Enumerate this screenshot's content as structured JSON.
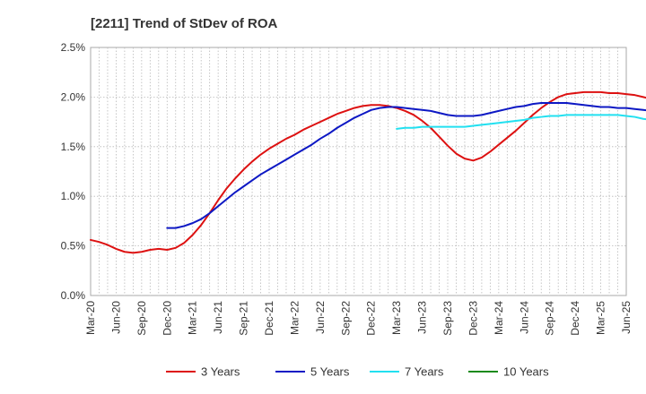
{
  "chart_data": {
    "type": "line",
    "title": "[2211]  Trend of StDev of ROA",
    "xlabel": "",
    "ylabel": "",
    "ylim": [
      0,
      2.5
    ],
    "y_ticks": [
      "0.0%",
      "0.5%",
      "1.0%",
      "1.5%",
      "2.0%",
      "2.5%"
    ],
    "x_ticks": [
      "Mar-20",
      "Jun-20",
      "Sep-20",
      "Dec-20",
      "Mar-21",
      "Jun-21",
      "Sep-21",
      "Dec-21",
      "Mar-22",
      "Jun-22",
      "Sep-22",
      "Dec-22",
      "Mar-23",
      "Jun-23",
      "Sep-23",
      "Dec-23",
      "Mar-24",
      "Jun-24",
      "Sep-24",
      "Dec-24",
      "Mar-25",
      "Jun-25"
    ],
    "grid": true,
    "legend_position": "bottom",
    "x_unit": "month index from Mar-20",
    "series": [
      {
        "name": "3 Years",
        "color": "#dd1111",
        "points": [
          [
            0,
            0.56
          ],
          [
            1,
            0.54
          ],
          [
            2,
            0.51
          ],
          [
            3,
            0.47
          ],
          [
            4,
            0.44
          ],
          [
            5,
            0.43
          ],
          [
            6,
            0.44
          ],
          [
            7,
            0.46
          ],
          [
            8,
            0.47
          ],
          [
            9,
            0.46
          ],
          [
            10,
            0.48
          ],
          [
            11,
            0.53
          ],
          [
            12,
            0.61
          ],
          [
            13,
            0.71
          ],
          [
            14,
            0.83
          ],
          [
            15,
            0.96
          ],
          [
            16,
            1.08
          ],
          [
            17,
            1.18
          ],
          [
            18,
            1.27
          ],
          [
            19,
            1.35
          ],
          [
            20,
            1.42
          ],
          [
            21,
            1.48
          ],
          [
            22,
            1.53
          ],
          [
            23,
            1.58
          ],
          [
            24,
            1.62
          ],
          [
            25,
            1.67
          ],
          [
            26,
            1.71
          ],
          [
            27,
            1.75
          ],
          [
            28,
            1.79
          ],
          [
            29,
            1.83
          ],
          [
            30,
            1.86
          ],
          [
            31,
            1.89
          ],
          [
            32,
            1.91
          ],
          [
            33,
            1.92
          ],
          [
            34,
            1.92
          ],
          [
            35,
            1.91
          ],
          [
            36,
            1.89
          ],
          [
            37,
            1.86
          ],
          [
            38,
            1.82
          ],
          [
            39,
            1.76
          ],
          [
            40,
            1.69
          ],
          [
            41,
            1.6
          ],
          [
            42,
            1.51
          ],
          [
            43,
            1.43
          ],
          [
            44,
            1.38
          ],
          [
            45,
            1.36
          ],
          [
            46,
            1.39
          ],
          [
            47,
            1.45
          ],
          [
            48,
            1.52
          ],
          [
            49,
            1.59
          ],
          [
            50,
            1.66
          ],
          [
            51,
            1.74
          ],
          [
            52,
            1.82
          ],
          [
            53,
            1.89
          ],
          [
            54,
            1.95
          ],
          [
            55,
            2.0
          ],
          [
            56,
            2.03
          ],
          [
            57,
            2.04
          ],
          [
            58,
            2.05
          ],
          [
            59,
            2.05
          ],
          [
            60,
            2.05
          ],
          [
            61,
            2.04
          ],
          [
            62,
            2.04
          ],
          [
            63,
            2.03
          ],
          [
            64,
            2.02
          ],
          [
            65,
            2.0
          ],
          [
            66,
            1.98
          ],
          [
            67,
            1.94
          ]
        ]
      },
      {
        "name": "5 Years",
        "color": "#0d18c4",
        "points": [
          [
            9,
            0.68
          ],
          [
            10,
            0.68
          ],
          [
            11,
            0.7
          ],
          [
            12,
            0.73
          ],
          [
            13,
            0.77
          ],
          [
            14,
            0.83
          ],
          [
            15,
            0.9
          ],
          [
            16,
            0.97
          ],
          [
            17,
            1.04
          ],
          [
            18,
            1.1
          ],
          [
            19,
            1.16
          ],
          [
            20,
            1.22
          ],
          [
            21,
            1.27
          ],
          [
            22,
            1.32
          ],
          [
            23,
            1.37
          ],
          [
            24,
            1.42
          ],
          [
            25,
            1.47
          ],
          [
            26,
            1.52
          ],
          [
            27,
            1.58
          ],
          [
            28,
            1.63
          ],
          [
            29,
            1.69
          ],
          [
            30,
            1.74
          ],
          [
            31,
            1.79
          ],
          [
            32,
            1.83
          ],
          [
            33,
            1.87
          ],
          [
            34,
            1.89
          ],
          [
            35,
            1.9
          ],
          [
            36,
            1.9
          ],
          [
            37,
            1.89
          ],
          [
            38,
            1.88
          ],
          [
            39,
            1.87
          ],
          [
            40,
            1.86
          ],
          [
            41,
            1.84
          ],
          [
            42,
            1.82
          ],
          [
            43,
            1.81
          ],
          [
            44,
            1.81
          ],
          [
            45,
            1.81
          ],
          [
            46,
            1.82
          ],
          [
            47,
            1.84
          ],
          [
            48,
            1.86
          ],
          [
            49,
            1.88
          ],
          [
            50,
            1.9
          ],
          [
            51,
            1.91
          ],
          [
            52,
            1.93
          ],
          [
            53,
            1.94
          ],
          [
            54,
            1.94
          ],
          [
            55,
            1.94
          ],
          [
            56,
            1.94
          ],
          [
            57,
            1.93
          ],
          [
            58,
            1.92
          ],
          [
            59,
            1.91
          ],
          [
            60,
            1.9
          ],
          [
            61,
            1.9
          ],
          [
            62,
            1.89
          ],
          [
            63,
            1.89
          ],
          [
            64,
            1.88
          ],
          [
            65,
            1.87
          ],
          [
            66,
            1.86
          ],
          [
            67,
            1.85
          ]
        ]
      },
      {
        "name": "7 Years",
        "color": "#22e0f0",
        "points": [
          [
            36,
            1.68
          ],
          [
            37,
            1.69
          ],
          [
            38,
            1.69
          ],
          [
            39,
            1.7
          ],
          [
            40,
            1.7
          ],
          [
            41,
            1.7
          ],
          [
            42,
            1.7
          ],
          [
            43,
            1.7
          ],
          [
            44,
            1.7
          ],
          [
            45,
            1.71
          ],
          [
            46,
            1.72
          ],
          [
            47,
            1.73
          ],
          [
            48,
            1.74
          ],
          [
            49,
            1.75
          ],
          [
            50,
            1.76
          ],
          [
            51,
            1.77
          ],
          [
            52,
            1.79
          ],
          [
            53,
            1.8
          ],
          [
            54,
            1.81
          ],
          [
            55,
            1.81
          ],
          [
            56,
            1.82
          ],
          [
            57,
            1.82
          ],
          [
            58,
            1.82
          ],
          [
            59,
            1.82
          ],
          [
            60,
            1.82
          ],
          [
            61,
            1.82
          ],
          [
            62,
            1.82
          ],
          [
            63,
            1.81
          ],
          [
            64,
            1.8
          ],
          [
            65,
            1.78
          ],
          [
            66,
            1.77
          ],
          [
            67,
            1.76
          ]
        ]
      },
      {
        "name": "10 Years",
        "color": "#1b8a1b",
        "points": []
      }
    ]
  }
}
